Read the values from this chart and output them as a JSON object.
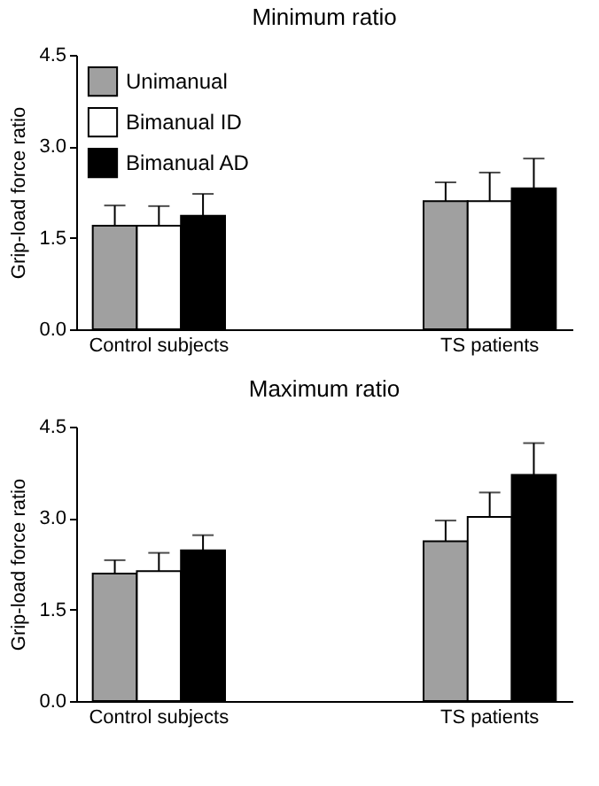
{
  "chart_data": [
    {
      "type": "bar",
      "title": "Minimum ratio",
      "ylabel": "Grip-load force ratio",
      "categories": [
        "Control subjects",
        "TS patients"
      ],
      "series": [
        {
          "name": "Unimanual",
          "color": "#a0a0a0",
          "values": [
            1.7,
            2.1
          ],
          "errors": [
            [
              1.7,
              2.03
            ],
            [
              2.1,
              2.41
            ]
          ]
        },
        {
          "name": "Bimanual ID",
          "color": "#ffffff",
          "values": [
            1.7,
            2.1
          ],
          "errors": [
            [
              1.7,
              2.02
            ],
            [
              2.1,
              2.57
            ]
          ]
        },
        {
          "name": "Bimanual AD",
          "color": "#000000",
          "values": [
            1.86,
            2.31
          ],
          "errors": [
            [
              1.86,
              2.22
            ],
            [
              2.31,
              2.8
            ]
          ]
        }
      ],
      "ylim": [
        0,
        4.5
      ],
      "yticks": [
        {
          "value": 0,
          "label": "0.0"
        },
        {
          "value": 1.5,
          "label": "1.5"
        },
        {
          "value": 3,
          "label": "3.0"
        },
        {
          "value": 4.5,
          "label": "4.5"
        }
      ],
      "grid": false,
      "legend": "top left"
    },
    {
      "type": "bar",
      "title": "Maximum ratio",
      "ylabel": "Grip-load force ratio",
      "categories": [
        "Control subjects",
        "TS patients"
      ],
      "series": [
        {
          "color": "#a0a0a0",
          "values": [
            2.09,
            2.62
          ],
          "errors": [
            [
              2.09,
              2.31
            ],
            [
              2.62,
              2.96
            ]
          ]
        },
        {
          "color": "#ffffff",
          "values": [
            2.13,
            3.02
          ],
          "errors": [
            [
              2.13,
              2.43
            ],
            [
              3.02,
              3.42
            ]
          ]
        },
        {
          "color": "#000000",
          "values": [
            2.47,
            3.71
          ],
          "errors": [
            [
              2.47,
              2.72
            ],
            [
              3.71,
              4.23
            ]
          ]
        }
      ],
      "ylim": [
        0,
        4.5
      ],
      "yticks": [
        {
          "value": 0,
          "label": "0.0"
        },
        {
          "value": 1.5,
          "label": "1.5"
        },
        {
          "value": 3,
          "label": "3.0"
        },
        {
          "value": 4.5,
          "label": "4.5"
        }
      ],
      "grid": false,
      "legend": false
    }
  ]
}
